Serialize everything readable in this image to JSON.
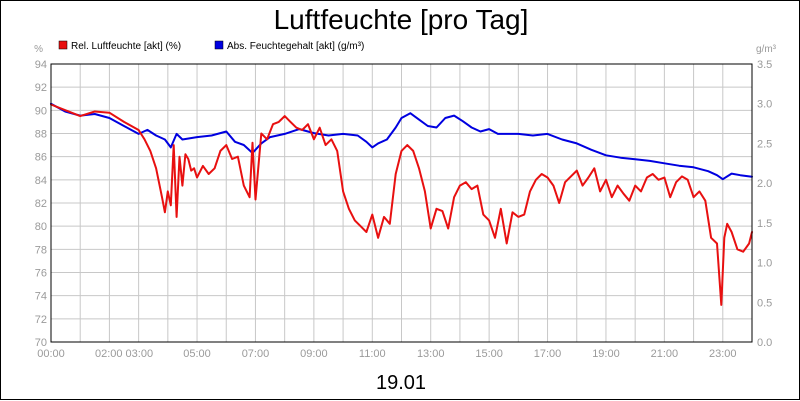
{
  "chart_data": {
    "type": "line",
    "title": "Luftfeuchte [pro Tag]",
    "xlabel": "19.01",
    "y_left_unit": "%",
    "y_right_unit": "g/m³",
    "x_ticks": [
      "00:00",
      "02:00 03:00",
      "05:00",
      "07:00",
      "09:00",
      "11:00",
      "13:00",
      "15:00",
      "17:00",
      "19:00",
      "21:00",
      "23:00"
    ],
    "y_left_ticks": [
      "70",
      "72",
      "74",
      "76",
      "78",
      "80",
      "82",
      "84",
      "86",
      "88",
      "90",
      "92",
      "94"
    ],
    "y_right_ticks": [
      "0.0",
      "0.5",
      "1.0",
      "1.5",
      "2.0",
      "2.5",
      "3.0",
      "3.5"
    ],
    "x_range_hours": [
      0,
      24
    ],
    "ylim_left": [
      70,
      94
    ],
    "ylim_right": [
      0.0,
      3.5
    ],
    "grid": true,
    "legend_position": "top-left",
    "series": [
      {
        "name": "Rel. Luftfeuchte [akt] (%)",
        "color": "#e81010",
        "axis": "left",
        "x": [
          0,
          0.5,
          1.0,
          1.5,
          2.0,
          2.5,
          3.0,
          3.2,
          3.4,
          3.6,
          3.8,
          3.9,
          4.0,
          4.1,
          4.2,
          4.3,
          4.4,
          4.5,
          4.6,
          4.7,
          4.8,
          4.9,
          5.0,
          5.2,
          5.4,
          5.6,
          5.8,
          6.0,
          6.2,
          6.4,
          6.6,
          6.8,
          6.9,
          7.0,
          7.2,
          7.4,
          7.6,
          7.8,
          8.0,
          8.2,
          8.4,
          8.6,
          8.8,
          9.0,
          9.2,
          9.4,
          9.6,
          9.8,
          10.0,
          10.2,
          10.4,
          10.6,
          10.8,
          11.0,
          11.2,
          11.4,
          11.6,
          11.8,
          12.0,
          12.2,
          12.4,
          12.6,
          12.8,
          13.0,
          13.2,
          13.4,
          13.6,
          13.8,
          14.0,
          14.2,
          14.4,
          14.6,
          14.8,
          15.0,
          15.2,
          15.4,
          15.6,
          15.8,
          16.0,
          16.2,
          16.4,
          16.6,
          16.8,
          17.0,
          17.2,
          17.4,
          17.6,
          17.8,
          18.0,
          18.2,
          18.4,
          18.6,
          18.8,
          19.0,
          19.2,
          19.4,
          19.6,
          19.8,
          20.0,
          20.2,
          20.4,
          20.6,
          20.8,
          21.0,
          21.2,
          21.4,
          21.6,
          21.8,
          22.0,
          22.2,
          22.4,
          22.6,
          22.8,
          22.95,
          23.05,
          23.15,
          23.3,
          23.5,
          23.7,
          23.9,
          24.0
        ],
        "values": [
          90.5,
          90.0,
          89.5,
          89.9,
          89.8,
          89.0,
          88.3,
          87.5,
          86.5,
          85.0,
          82.5,
          81.2,
          83.0,
          81.8,
          87.0,
          80.8,
          86.0,
          83.5,
          86.2,
          85.8,
          84.8,
          85.0,
          84.2,
          85.2,
          84.5,
          85.0,
          86.5,
          87.0,
          85.8,
          86.0,
          83.5,
          82.5,
          87.2,
          82.3,
          88.0,
          87.5,
          88.8,
          89.0,
          89.5,
          89.0,
          88.5,
          88.3,
          88.8,
          87.5,
          88.5,
          87.0,
          87.5,
          86.5,
          83.0,
          81.5,
          80.5,
          80.0,
          79.5,
          81.0,
          79.0,
          80.8,
          80.2,
          84.5,
          86.5,
          87.0,
          86.5,
          85.0,
          83.0,
          79.8,
          81.5,
          81.3,
          79.8,
          82.5,
          83.5,
          83.8,
          83.2,
          83.5,
          81.0,
          80.5,
          79.0,
          81.5,
          78.5,
          81.2,
          80.8,
          81.0,
          83.0,
          84.0,
          84.5,
          84.2,
          83.5,
          82.0,
          83.8,
          84.3,
          84.8,
          83.5,
          84.2,
          85.0,
          83.0,
          84.0,
          82.5,
          83.5,
          82.8,
          82.2,
          83.5,
          83.0,
          84.2,
          84.5,
          84.0,
          84.2,
          82.5,
          83.8,
          84.3,
          84.0,
          82.5,
          83.0,
          82.2,
          79.0,
          78.5,
          73.2,
          79.0,
          80.2,
          79.5,
          78.0,
          77.8,
          78.5,
          79.5
        ]
      },
      {
        "name": "Abs. Feuchtegehalt [akt] (g/m³)",
        "color": "#0000e0",
        "axis": "right",
        "x": [
          0,
          0.5,
          1.0,
          1.5,
          2.0,
          2.5,
          3.0,
          3.3,
          3.6,
          3.9,
          4.1,
          4.3,
          4.5,
          5.0,
          5.5,
          6.0,
          6.3,
          6.6,
          6.9,
          7.2,
          7.5,
          8.0,
          8.5,
          9.0,
          9.5,
          10.0,
          10.5,
          10.8,
          11.0,
          11.2,
          11.5,
          11.8,
          12.0,
          12.3,
          12.6,
          12.9,
          13.2,
          13.5,
          13.8,
          14.1,
          14.4,
          14.7,
          15.0,
          15.3,
          15.6,
          16.0,
          16.5,
          17.0,
          17.5,
          18.0,
          18.5,
          19.0,
          19.5,
          20.0,
          20.5,
          21.0,
          21.5,
          22.0,
          22.5,
          22.8,
          23.0,
          23.3,
          23.6,
          24.0
        ],
        "values": [
          3.0,
          2.9,
          2.85,
          2.87,
          2.82,
          2.72,
          2.62,
          2.67,
          2.6,
          2.55,
          2.45,
          2.62,
          2.55,
          2.58,
          2.6,
          2.65,
          2.52,
          2.48,
          2.38,
          2.5,
          2.58,
          2.62,
          2.68,
          2.63,
          2.6,
          2.62,
          2.6,
          2.52,
          2.45,
          2.5,
          2.55,
          2.7,
          2.82,
          2.88,
          2.8,
          2.72,
          2.7,
          2.82,
          2.85,
          2.78,
          2.7,
          2.65,
          2.68,
          2.62,
          2.62,
          2.62,
          2.6,
          2.62,
          2.55,
          2.5,
          2.42,
          2.35,
          2.32,
          2.3,
          2.28,
          2.25,
          2.22,
          2.2,
          2.15,
          2.1,
          2.05,
          2.12,
          2.1,
          2.08
        ]
      }
    ]
  }
}
